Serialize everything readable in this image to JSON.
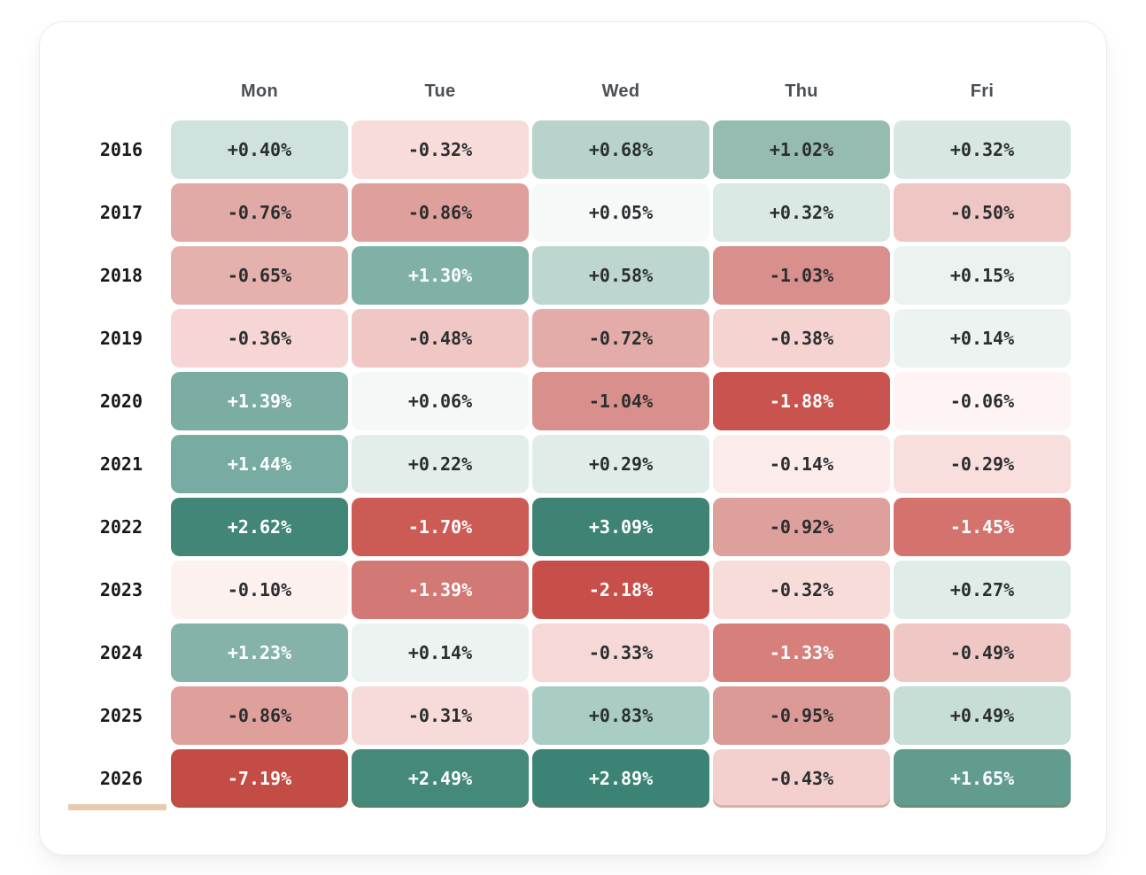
{
  "page": {
    "background": "#ffffff",
    "card_background": "#ffffff",
    "card_border": "#ececec"
  },
  "heatmap": {
    "columns": [
      "Mon",
      "Tue",
      "Wed",
      "Thu",
      "Fri"
    ],
    "highlighted_year": "2026",
    "highlight_color": "#e8caad",
    "color_scale": {
      "negative": "#c4473f",
      "zero": "#fbfdfc",
      "positive": "#2f7d6d"
    },
    "rows": [
      {
        "year": "2016",
        "cells": [
          {
            "label": "+0.40%",
            "bg": "#cfe2dd",
            "white": false
          },
          {
            "label": "-0.32%",
            "bg": "#f7dcda",
            "white": false
          },
          {
            "label": "+0.68%",
            "bg": "#b7d3cc",
            "white": false
          },
          {
            "label": "+1.02%",
            "bg": "#96bcb2",
            "white": false
          },
          {
            "label": "+0.32%",
            "bg": "#d9e7e3",
            "white": false
          }
        ]
      },
      {
        "year": "2017",
        "cells": [
          {
            "label": "-0.76%",
            "bg": "#e2aaa6",
            "white": false
          },
          {
            "label": "-0.86%",
            "bg": "#dfa09c",
            "white": false
          },
          {
            "label": "+0.05%",
            "bg": "#f5f9f8",
            "white": false
          },
          {
            "label": "+0.32%",
            "bg": "#dbe9e5",
            "white": false
          },
          {
            "label": "-0.50%",
            "bg": "#eec6c4",
            "white": false
          }
        ]
      },
      {
        "year": "2018",
        "cells": [
          {
            "label": "-0.65%",
            "bg": "#e5b1ad",
            "white": false
          },
          {
            "label": "+1.30%",
            "bg": "#80b1a7",
            "white": true
          },
          {
            "label": "+0.58%",
            "bg": "#bdd7d0",
            "white": false
          },
          {
            "label": "-1.03%",
            "bg": "#d98f8b",
            "white": false
          },
          {
            "label": "+0.15%",
            "bg": "#ebf2f0",
            "white": false
          }
        ]
      },
      {
        "year": "2019",
        "cells": [
          {
            "label": "-0.36%",
            "bg": "#f5d6d4",
            "white": false
          },
          {
            "label": "-0.48%",
            "bg": "#efc8c6",
            "white": false
          },
          {
            "label": "-0.72%",
            "bg": "#e3aca9",
            "white": false
          },
          {
            "label": "-0.38%",
            "bg": "#f4d3d1",
            "white": false
          },
          {
            "label": "+0.14%",
            "bg": "#ecf3f1",
            "white": false
          }
        ]
      },
      {
        "year": "2020",
        "cells": [
          {
            "label": "+1.39%",
            "bg": "#7bada3",
            "white": true
          },
          {
            "label": "+0.06%",
            "bg": "#f4f8f7",
            "white": false
          },
          {
            "label": "-1.04%",
            "bg": "#d98f8c",
            "white": false
          },
          {
            "label": "-1.88%",
            "bg": "#c9534e",
            "white": true
          },
          {
            "label": "-0.06%",
            "bg": "#fdf4f3",
            "white": false
          }
        ]
      },
      {
        "year": "2021",
        "cells": [
          {
            "label": "+1.44%",
            "bg": "#78aba1",
            "white": true
          },
          {
            "label": "+0.22%",
            "bg": "#e3eeea",
            "white": false
          },
          {
            "label": "+0.29%",
            "bg": "#dfece8",
            "white": false
          },
          {
            "label": "-0.14%",
            "bg": "#fbeceb",
            "white": false
          },
          {
            "label": "-0.29%",
            "bg": "#f8dedc",
            "white": false
          }
        ]
      },
      {
        "year": "2022",
        "cells": [
          {
            "label": "+2.62%",
            "bg": "#428678",
            "white": true
          },
          {
            "label": "-1.70%",
            "bg": "#cd5b55",
            "white": true
          },
          {
            "label": "+3.09%",
            "bg": "#3e8374",
            "white": true
          },
          {
            "label": "-0.92%",
            "bg": "#dda09c",
            "white": false
          },
          {
            "label": "-1.45%",
            "bg": "#d4736e",
            "white": true
          }
        ]
      },
      {
        "year": "2023",
        "cells": [
          {
            "label": "-0.10%",
            "bg": "#fdf1f0",
            "white": false
          },
          {
            "label": "-1.39%",
            "bg": "#d37975",
            "white": true
          },
          {
            "label": "-2.18%",
            "bg": "#c64f4a",
            "white": true
          },
          {
            "label": "-0.32%",
            "bg": "#f7dcda",
            "white": false
          },
          {
            "label": "+0.27%",
            "bg": "#dfece8",
            "white": false
          }
        ]
      },
      {
        "year": "2024",
        "cells": [
          {
            "label": "+1.23%",
            "bg": "#85b3a9",
            "white": true
          },
          {
            "label": "+0.14%",
            "bg": "#ecf3f1",
            "white": false
          },
          {
            "label": "-0.33%",
            "bg": "#f6d9d7",
            "white": false
          },
          {
            "label": "-1.33%",
            "bg": "#d67f7b",
            "white": true
          },
          {
            "label": "-0.49%",
            "bg": "#efc8c6",
            "white": false
          }
        ]
      },
      {
        "year": "2025",
        "cells": [
          {
            "label": "-0.86%",
            "bg": "#dfa09c",
            "white": false
          },
          {
            "label": "-0.31%",
            "bg": "#f7dbd9",
            "white": false
          },
          {
            "label": "+0.83%",
            "bg": "#a9ccc4",
            "white": false
          },
          {
            "label": "-0.95%",
            "bg": "#db9a96",
            "white": false
          },
          {
            "label": "+0.49%",
            "bg": "#c7ded7",
            "white": false
          }
        ]
      },
      {
        "year": "2026",
        "cells": [
          {
            "label": "-7.19%",
            "bg": "#c34c45",
            "white": true
          },
          {
            "label": "+2.49%",
            "bg": "#45897a",
            "white": true
          },
          {
            "label": "+2.89%",
            "bg": "#3b8475",
            "white": true
          },
          {
            "label": "-0.43%",
            "bg": "#f3d0ce",
            "white": false
          },
          {
            "label": "+1.65%",
            "bg": "#629c8f",
            "white": true
          }
        ]
      }
    ]
  },
  "chart_data": {
    "type": "heatmap",
    "title": "",
    "x": [
      "Mon",
      "Tue",
      "Wed",
      "Thu",
      "Fri"
    ],
    "y": [
      "2016",
      "2017",
      "2018",
      "2019",
      "2020",
      "2021",
      "2022",
      "2023",
      "2024",
      "2025",
      "2026"
    ],
    "values": [
      [
        0.4,
        -0.32,
        0.68,
        1.02,
        0.32
      ],
      [
        -0.76,
        -0.86,
        0.05,
        0.32,
        -0.5
      ],
      [
        -0.65,
        1.3,
        0.58,
        -1.03,
        0.15
      ],
      [
        -0.36,
        -0.48,
        -0.72,
        -0.38,
        0.14
      ],
      [
        1.39,
        0.06,
        -1.04,
        -1.88,
        -0.06
      ],
      [
        1.44,
        0.22,
        0.29,
        -0.14,
        -0.29
      ],
      [
        2.62,
        -1.7,
        3.09,
        -0.92,
        -1.45
      ],
      [
        -0.1,
        -1.39,
        -2.18,
        -0.32,
        0.27
      ],
      [
        1.23,
        0.14,
        -0.33,
        -1.33,
        -0.49
      ],
      [
        -0.86,
        -0.31,
        0.83,
        -0.95,
        0.49
      ],
      [
        -7.19,
        2.49,
        2.89,
        -0.43,
        1.65
      ]
    ],
    "value_format": "signed percent, two decimals",
    "legend": "none",
    "grid": false,
    "colorscale": "diverging red (negative) to white (zero) to teal (positive)"
  }
}
